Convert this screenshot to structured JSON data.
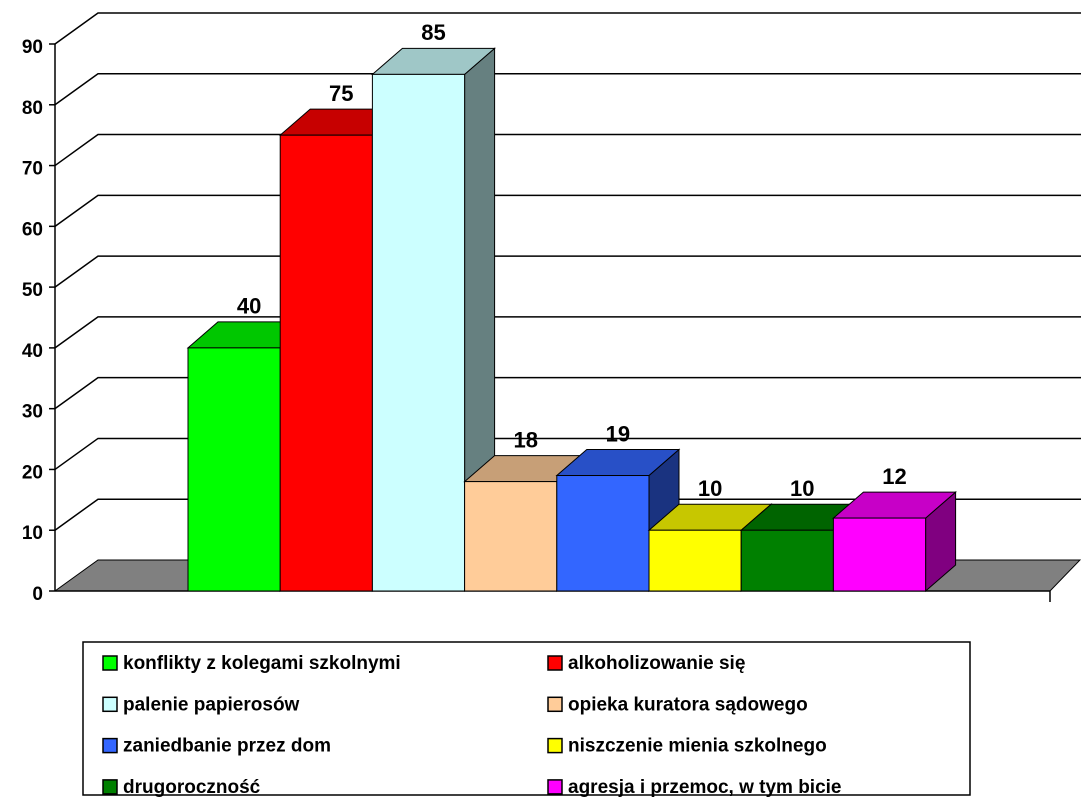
{
  "chart_data": {
    "type": "bar3d",
    "series": [
      {
        "name": "konflikty z kolegami szkolnymi",
        "color": "#00ff00",
        "values": [
          40
        ]
      },
      {
        "name": "alkoholizowanie się",
        "color": "#ff0000",
        "values": [
          75
        ]
      },
      {
        "name": "palenie papierosów",
        "color": "#ccffff",
        "values": [
          85
        ]
      },
      {
        "name": "opieka kuratora sądowego",
        "color": "#ffcc99",
        "values": [
          18
        ]
      },
      {
        "name": "zaniedbanie przez dom",
        "color": "#3366ff",
        "values": [
          19
        ]
      },
      {
        "name": "niszczenie mienia szkolnego",
        "color": "#ffff00",
        "values": [
          10
        ]
      },
      {
        "name": "drugoroczność",
        "color": "#008000",
        "values": [
          10
        ]
      },
      {
        "name": "agresja i przemoc, w tym bicie",
        "color": "#ff00ff",
        "values": [
          12
        ]
      }
    ],
    "ylim": [
      0,
      90
    ],
    "yticks": [
      0,
      10,
      20,
      30,
      40,
      50,
      60,
      70,
      80,
      90
    ],
    "grid": true
  }
}
